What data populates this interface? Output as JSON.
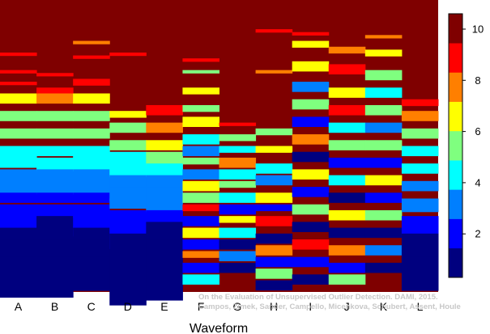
{
  "chart_data": {
    "type": "heatmap",
    "title": "",
    "xlabel": "Waveform",
    "ylabel": "",
    "categories": [
      "A",
      "B",
      "C",
      "D",
      "E",
      "F",
      "G",
      "H",
      "I",
      "J",
      "K",
      "L"
    ],
    "colorbar": {
      "range": [
        0.3,
        10.6
      ],
      "ticks": [
        2,
        4,
        6,
        8,
        10
      ],
      "colors": [
        "#00007f",
        "#0000ff",
        "#007fff",
        "#00ffff",
        "#7fff7f",
        "#ffff00",
        "#ff7f00",
        "#ff0000",
        "#7f0000"
      ]
    },
    "dominant_value": 10.3,
    "columns": [
      {
        "name": "A",
        "segments": [
          [
            8.2,
            1,
            9
          ],
          [
            7.6,
            1,
            8.5
          ],
          [
            7.2,
            1,
            9
          ],
          [
            6.8,
            3,
            7
          ],
          [
            6.2,
            3,
            6
          ],
          [
            5.6,
            3,
            5
          ],
          [
            5.0,
            4,
            4.8
          ],
          [
            4.6,
            3,
            4
          ],
          [
            4.2,
            4,
            3.5
          ],
          [
            3.8,
            4,
            3
          ],
          [
            3.4,
            3,
            2.5
          ],
          [
            3.0,
            4,
            2
          ],
          [
            2.6,
            6,
            1.5
          ],
          [
            2.2,
            10,
            0.7
          ],
          [
            1.8,
            14,
            0.7
          ],
          [
            1.2,
            12,
            0.6
          ]
        ]
      },
      {
        "name": "B",
        "segments": [
          [
            7.5,
            1,
            9
          ],
          [
            7.0,
            2,
            8.5
          ],
          [
            6.8,
            3,
            7.5
          ],
          [
            6.2,
            3,
            6
          ],
          [
            5.6,
            3,
            5
          ],
          [
            5.0,
            3,
            4.8
          ],
          [
            4.6,
            4,
            4.2
          ],
          [
            4.2,
            4,
            3.5
          ],
          [
            3.8,
            4,
            3
          ],
          [
            3.4,
            3,
            2.5
          ],
          [
            3.0,
            4,
            2
          ],
          [
            2.6,
            8,
            1.4
          ],
          [
            2.2,
            12,
            0.7
          ],
          [
            1.8,
            14,
            0.7
          ],
          [
            1.2,
            12,
            0.6
          ]
        ]
      },
      {
        "name": "C",
        "segments": [
          [
            8.6,
            1,
            7.8
          ],
          [
            8.1,
            1,
            8.8
          ],
          [
            7.3,
            2,
            8.5
          ],
          [
            6.8,
            3,
            7
          ],
          [
            6.2,
            3,
            6
          ],
          [
            5.6,
            3,
            5
          ],
          [
            5.0,
            4,
            4.8
          ],
          [
            4.6,
            4,
            4.2
          ],
          [
            4.2,
            4,
            3.4
          ],
          [
            3.8,
            4,
            3
          ],
          [
            3.4,
            3,
            2.5
          ],
          [
            3.0,
            4,
            2
          ],
          [
            2.6,
            6,
            1.5
          ],
          [
            2.2,
            12,
            0.7
          ],
          [
            1.8,
            14,
            0.7
          ],
          [
            1.2,
            10,
            0.6
          ]
        ]
      },
      {
        "name": "D",
        "segments": [
          [
            8.2,
            1,
            8.8
          ],
          [
            6.2,
            2,
            7
          ],
          [
            5.8,
            3,
            6
          ],
          [
            5.2,
            3,
            5
          ],
          [
            4.8,
            4,
            4.6
          ],
          [
            4.4,
            4,
            4.2
          ],
          [
            4.0,
            4,
            3.6
          ],
          [
            3.6,
            4,
            3.2
          ],
          [
            3.2,
            3,
            2.6
          ],
          [
            2.8,
            4,
            2
          ],
          [
            2.4,
            8,
            1.5
          ],
          [
            2.0,
            14,
            0.8
          ],
          [
            1.4,
            16,
            0.6
          ]
        ]
      },
      {
        "name": "E",
        "segments": [
          [
            6.4,
            3,
            8.5
          ],
          [
            5.8,
            3,
            7.2
          ],
          [
            5.2,
            3,
            6.2
          ],
          [
            4.8,
            4,
            5
          ],
          [
            4.4,
            4,
            4.4
          ],
          [
            4.0,
            4,
            3.7
          ],
          [
            3.6,
            4,
            3.2
          ],
          [
            3.2,
            4,
            2.6
          ],
          [
            2.8,
            6,
            2
          ],
          [
            2.4,
            10,
            1.4
          ],
          [
            1.8,
            18,
            0.7
          ]
        ]
      },
      {
        "name": "F",
        "segments": [
          [
            8.0,
            1,
            8.8
          ],
          [
            7.6,
            1,
            5.8
          ],
          [
            7.0,
            2,
            7
          ],
          [
            6.4,
            2,
            5
          ],
          [
            6.0,
            3,
            6.2
          ],
          [
            5.4,
            3,
            4.5
          ],
          [
            5.0,
            3,
            3.5
          ],
          [
            4.6,
            2,
            6
          ],
          [
            4.2,
            3,
            3
          ],
          [
            3.8,
            3,
            7
          ],
          [
            3.4,
            3,
            5
          ],
          [
            3.0,
            2,
            8.5
          ],
          [
            2.6,
            3,
            2.2
          ],
          [
            2.2,
            3,
            6.5
          ],
          [
            1.8,
            3,
            1.5
          ],
          [
            1.4,
            2,
            8
          ],
          [
            1.0,
            3,
            2.5
          ],
          [
            0.6,
            3,
            4.2
          ]
        ]
      },
      {
        "name": "G",
        "segments": [
          [
            5.8,
            1,
            8.5
          ],
          [
            5.4,
            2,
            6
          ],
          [
            5.0,
            2,
            4
          ],
          [
            4.6,
            3,
            7.2
          ],
          [
            4.2,
            3,
            3.8
          ],
          [
            3.8,
            2,
            5.5
          ],
          [
            3.4,
            3,
            4.4
          ],
          [
            3.0,
            3,
            2.5
          ],
          [
            2.6,
            2,
            6.8
          ],
          [
            2.2,
            3,
            4.8
          ],
          [
            1.8,
            3,
            1.2
          ],
          [
            1.4,
            3,
            3
          ],
          [
            1.0,
            3,
            0.8
          ]
        ]
      },
      {
        "name": "H",
        "segments": [
          [
            9.0,
            1,
            8.8
          ],
          [
            7.6,
            1,
            7.8
          ],
          [
            5.6,
            2,
            6
          ],
          [
            5.0,
            2,
            7
          ],
          [
            4.4,
            3,
            4.8
          ],
          [
            4.0,
            3,
            3.5
          ],
          [
            3.4,
            3,
            6.2
          ],
          [
            3.0,
            2,
            2
          ],
          [
            2.6,
            3,
            8.5
          ],
          [
            2.0,
            3,
            1.4
          ],
          [
            1.6,
            3,
            7.3
          ],
          [
            1.2,
            3,
            2.5
          ],
          [
            0.8,
            3,
            5.6
          ],
          [
            0.4,
            3,
            1
          ]
        ]
      },
      {
        "name": "I",
        "segments": [
          [
            8.9,
            1,
            8.8
          ],
          [
            8.6,
            2,
            7
          ],
          [
            7.9,
            3,
            6.2
          ],
          [
            7.2,
            3,
            3
          ],
          [
            6.6,
            3,
            5.6
          ],
          [
            6.0,
            3,
            2.2
          ],
          [
            5.4,
            3,
            7.2
          ],
          [
            4.8,
            3,
            1.4
          ],
          [
            4.2,
            3,
            6.4
          ],
          [
            3.6,
            3,
            1.8
          ],
          [
            3.0,
            3,
            5
          ],
          [
            2.4,
            3,
            1.2
          ],
          [
            1.8,
            3,
            8.5
          ],
          [
            1.2,
            3,
            2.4
          ],
          [
            0.6,
            3,
            0.8
          ]
        ]
      },
      {
        "name": "J",
        "segments": [
          [
            8.4,
            2,
            7.6
          ],
          [
            7.8,
            3,
            8.8
          ],
          [
            7.0,
            3,
            6.3
          ],
          [
            6.4,
            3,
            8.6
          ],
          [
            5.8,
            3,
            3.8
          ],
          [
            5.2,
            3,
            5.8
          ],
          [
            4.6,
            3,
            2.2
          ],
          [
            4.0,
            3,
            4.6
          ],
          [
            3.4,
            3,
            1.4
          ],
          [
            2.8,
            3,
            6.4
          ],
          [
            2.2,
            3,
            1.4
          ],
          [
            1.6,
            3,
            7.3
          ],
          [
            1.0,
            3,
            2.5
          ],
          [
            0.6,
            3,
            5.4
          ]
        ]
      },
      {
        "name": "K",
        "segments": [
          [
            8.8,
            1,
            7.8
          ],
          [
            8.3,
            2,
            6.2
          ],
          [
            7.6,
            3,
            6
          ],
          [
            7.0,
            3,
            4.2
          ],
          [
            6.4,
            3,
            5.6
          ],
          [
            5.8,
            3,
            3.2
          ],
          [
            5.2,
            3,
            5
          ],
          [
            4.6,
            3,
            1.6
          ],
          [
            4.0,
            3,
            7
          ],
          [
            3.4,
            3,
            2.4
          ],
          [
            2.8,
            3,
            5.6
          ],
          [
            2.2,
            3,
            1.2
          ],
          [
            1.6,
            3,
            3.6
          ],
          [
            1.0,
            3,
            0.8
          ]
        ]
      },
      {
        "name": "L",
        "segments": [
          [
            6.6,
            2,
            8.8
          ],
          [
            6.2,
            3,
            7.4
          ],
          [
            5.6,
            3,
            5.8
          ],
          [
            5.0,
            3,
            4.8
          ],
          [
            4.4,
            3,
            4
          ],
          [
            3.8,
            3,
            3.2
          ],
          [
            3.2,
            4,
            2.6
          ],
          [
            2.6,
            6,
            1.8
          ],
          [
            2.0,
            12,
            0.8
          ],
          [
            1.2,
            10,
            0.6
          ]
        ]
      }
    ]
  },
  "watermark": {
    "line1": "On the Evaluation of Unsupervised Outlier Detection. DAMI, 2015.",
    "line2": "Campos, Zimek, Sander, Campello, Micenkova, Schubert, Assent, Houle"
  }
}
